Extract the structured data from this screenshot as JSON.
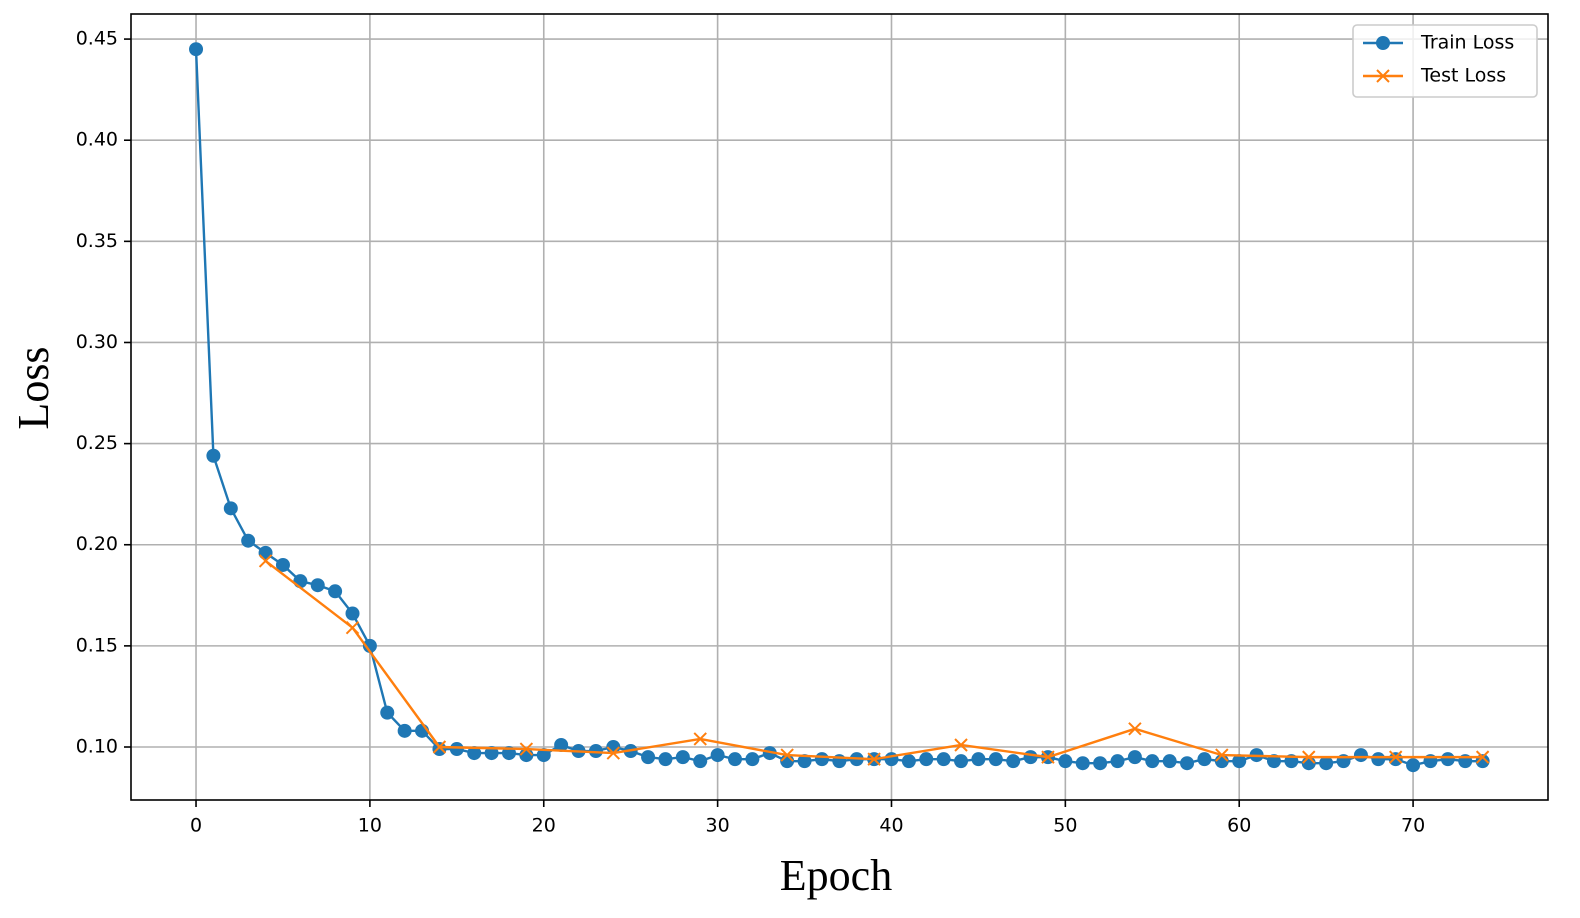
{
  "chart_data": {
    "type": "line",
    "x_label": "Epoch",
    "y_label": "Loss",
    "xlim": [
      -3.74,
      77.76
    ],
    "ylim": [
      0.0738,
      0.4624
    ],
    "xticks": [
      0,
      10,
      20,
      30,
      40,
      50,
      60,
      70
    ],
    "yticks": [
      {
        "value": 0.1,
        "label": "0.10"
      },
      0.15,
      {
        "value": 0.2,
        "label": "0.20"
      },
      0.25,
      {
        "value": 0.3,
        "label": "0.30"
      },
      0.35,
      {
        "value": 0.4,
        "label": "0.40"
      },
      0.45
    ],
    "grid": true,
    "legend": "upper right",
    "series": [
      {
        "name": "Train Loss",
        "color": "#1f77b4",
        "marker": "o",
        "x": [
          0,
          1,
          2,
          3,
          4,
          5,
          6,
          7,
          8,
          9,
          10,
          11,
          12,
          13,
          14,
          15,
          16,
          17,
          18,
          19,
          20,
          21,
          22,
          23,
          24,
          25,
          26,
          27,
          28,
          29,
          30,
          31,
          32,
          33,
          34,
          35,
          36,
          37,
          38,
          39,
          40,
          41,
          42,
          43,
          44,
          45,
          46,
          47,
          48,
          49,
          50,
          51,
          52,
          53,
          54,
          55,
          56,
          57,
          58,
          59,
          60,
          61,
          62,
          63,
          64,
          65,
          66,
          67,
          68,
          69,
          70,
          71,
          72,
          73,
          74
        ],
        "values": [
          0.445,
          0.244,
          0.218,
          0.202,
          0.196,
          0.19,
          0.182,
          0.18,
          0.177,
          0.166,
          0.15,
          0.117,
          0.108,
          0.108,
          0.099,
          0.099,
          0.097,
          0.097,
          0.097,
          0.096,
          0.096,
          0.101,
          0.098,
          0.098,
          0.1,
          0.098,
          0.095,
          0.094,
          0.095,
          0.093,
          0.096,
          0.094,
          0.094,
          0.097,
          0.093,
          0.093,
          0.094,
          0.093,
          0.094,
          0.094,
          0.094,
          0.093,
          0.094,
          0.094,
          0.093,
          0.094,
          0.094,
          0.093,
          0.095,
          0.095,
          0.093,
          0.092,
          0.092,
          0.093,
          0.095,
          0.093,
          0.093,
          0.092,
          0.094,
          0.093,
          0.093,
          0.096,
          0.093,
          0.093,
          0.092,
          0.092,
          0.093,
          0.096,
          0.094,
          0.094,
          0.091,
          0.093,
          0.094,
          0.093,
          0.093
        ]
      },
      {
        "name": "Test Loss",
        "color": "#ff7f0e",
        "marker": "x",
        "x": [
          4,
          9,
          14,
          19,
          24,
          29,
          34,
          39,
          44,
          49,
          54,
          59,
          64,
          69,
          74
        ],
        "values": [
          0.192,
          0.159,
          0.1,
          0.099,
          0.097,
          0.104,
          0.096,
          0.094,
          0.101,
          0.095,
          0.109,
          0.096,
          0.095,
          0.095,
          0.095
        ]
      }
    ]
  }
}
